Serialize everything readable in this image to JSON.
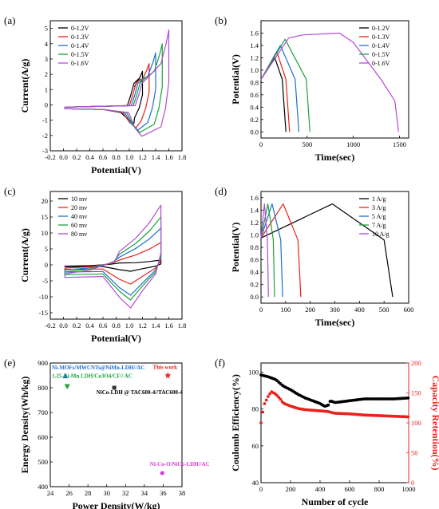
{
  "chart_data": [
    {
      "panel": "(a)",
      "type": "line",
      "xlabel": "Potential(V)",
      "ylabel": "Current(A/g)",
      "xlim": [
        -0.2,
        1.8
      ],
      "ylim": [
        -3,
        5.5
      ],
      "xticks": [
        -0.2,
        0.0,
        0.2,
        0.4,
        0.6,
        0.8,
        1.0,
        1.2,
        1.4,
        1.6,
        1.8
      ],
      "yticks": [
        -3,
        -2,
        -1,
        0,
        1,
        2,
        3,
        4,
        5
      ],
      "legend_position": "top-left",
      "series": [
        {
          "name": "0-1.2V",
          "color": "#000000",
          "end_potential": 1.2,
          "peak_current": 2.2,
          "valley_current": -1.2
        },
        {
          "name": "0-1.3V",
          "color": "#e8221b",
          "end_potential": 1.3,
          "peak_current": 2.7,
          "valley_current": -1.5
        },
        {
          "name": "0-1.4V",
          "color": "#1f6fd1",
          "end_potential": 1.4,
          "peak_current": 3.4,
          "valley_current": -1.65
        },
        {
          "name": "0-1.5V",
          "color": "#1aa33a",
          "end_potential": 1.5,
          "peak_current": 4.0,
          "valley_current": -1.8
        },
        {
          "name": "0-1.6V",
          "color": "#b54ad6",
          "end_potential": 1.6,
          "peak_current": 4.9,
          "valley_current": -2.05
        }
      ]
    },
    {
      "panel": "(b)",
      "type": "line",
      "xlabel": "Time(sec)",
      "ylabel": "Potential(V)",
      "xlim": [
        0,
        1600
      ],
      "ylim": [
        -0.1,
        1.8
      ],
      "xticks": [
        0,
        500,
        1000,
        1500
      ],
      "yticks": [
        0.0,
        0.2,
        0.4,
        0.6,
        0.8,
        1.0,
        1.2,
        1.4,
        1.6
      ],
      "legend_position": "top-right",
      "series": [
        {
          "name": "0-1.2V",
          "color": "#000000",
          "points": [
            [
              0,
              0.85
            ],
            [
              150,
              1.2
            ],
            [
              230,
              0.85
            ],
            [
              270,
              0
            ]
          ]
        },
        {
          "name": "0-1.3V",
          "color": "#e8221b",
          "points": [
            [
              0,
              0.85
            ],
            [
              170,
              1.3
            ],
            [
              270,
              0.85
            ],
            [
              310,
              0
            ]
          ]
        },
        {
          "name": "0-1.4V",
          "color": "#1f6fd1",
          "points": [
            [
              0,
              0.85
            ],
            [
              210,
              1.4
            ],
            [
              370,
              0.85
            ],
            [
              410,
              0
            ]
          ]
        },
        {
          "name": "0-1.5V",
          "color": "#1aa33a",
          "points": [
            [
              0,
              0.85
            ],
            [
              260,
              1.5
            ],
            [
              490,
              0.85
            ],
            [
              530,
              0
            ]
          ]
        },
        {
          "name": "0-1.6V",
          "color": "#b54ad6",
          "points": [
            [
              0,
              0.85
            ],
            [
              300,
              1.52
            ],
            [
              450,
              1.57
            ],
            [
              850,
              1.6
            ],
            [
              1000,
              1.45
            ],
            [
              1300,
              0.85
            ],
            [
              1450,
              0.5
            ],
            [
              1490,
              0
            ]
          ]
        }
      ]
    },
    {
      "panel": "(c)",
      "type": "line",
      "xlabel": "Potential(V)",
      "ylabel": "Current(A/g)",
      "xlim": [
        -0.2,
        1.8
      ],
      "ylim": [
        -17,
        23
      ],
      "xticks": [
        -0.2,
        0.0,
        0.2,
        0.4,
        0.6,
        0.8,
        1.0,
        1.2,
        1.4,
        1.6,
        1.8
      ],
      "yticks": [
        -15,
        -10,
        -5,
        0,
        5,
        10,
        15,
        20
      ],
      "legend_position": "top-left",
      "series": [
        {
          "name": "10 mv",
          "color": "#000000",
          "peak_current": 1.5,
          "valley_current": -2.0
        },
        {
          "name": "20 mv",
          "color": "#e8221b",
          "peak_current": 7.0,
          "valley_current": -6.0
        },
        {
          "name": "40 mv",
          "color": "#1f6fd1",
          "peak_current": 11.5,
          "valley_current": -9.5
        },
        {
          "name": "60 mv",
          "color": "#1aa33a",
          "peak_current": 15.0,
          "valley_current": -11.0
        },
        {
          "name": "80 mv",
          "color": "#b54ad6",
          "peak_current": 18.7,
          "valley_current": -13.5
        }
      ]
    },
    {
      "panel": "(d)",
      "type": "line",
      "xlabel": "Time(sec)",
      "ylabel": "Potential(V)",
      "xlim": [
        0,
        600
      ],
      "ylim": [
        -0.1,
        1.7
      ],
      "xticks": [
        0,
        100,
        200,
        300,
        400,
        500,
        600
      ],
      "yticks": [
        0.0,
        0.2,
        0.4,
        0.6,
        0.8,
        1.0,
        1.2,
        1.4,
        1.6
      ],
      "legend_position": "top-right",
      "series": [
        {
          "name": "1 A/g",
          "color": "#000000",
          "points": [
            [
              0,
              0.95
            ],
            [
              290,
              1.5
            ],
            [
              500,
              0.92
            ],
            [
              535,
              0
            ]
          ]
        },
        {
          "name": "3 A/g",
          "color": "#e8221b",
          "points": [
            [
              0,
              0.95
            ],
            [
              90,
              1.5
            ],
            [
              150,
              0.92
            ],
            [
              162,
              0
            ]
          ]
        },
        {
          "name": "5 A/g",
          "color": "#1f6fd1",
          "points": [
            [
              0,
              0.95
            ],
            [
              45,
              1.5
            ],
            [
              80,
              0.92
            ],
            [
              88,
              0
            ]
          ]
        },
        {
          "name": "7 A/g",
          "color": "#1aa33a",
          "points": [
            [
              0,
              0.95
            ],
            [
              28,
              1.5
            ],
            [
              50,
              0.92
            ],
            [
              55,
              0
            ]
          ]
        },
        {
          "name": "10 A/g",
          "color": "#b54ad6",
          "points": [
            [
              0,
              0.95
            ],
            [
              14,
              1.5
            ],
            [
              26,
              0.92
            ],
            [
              30,
              0
            ]
          ]
        }
      ]
    },
    {
      "panel": "(e)",
      "type": "scatter",
      "xlabel": "Power Density(W/kg)",
      "ylabel": "Energy Density(Wh/kg)",
      "xlim": [
        24,
        38
      ],
      "ylim": [
        400,
        900
      ],
      "xticks": [
        24,
        26,
        28,
        30,
        32,
        34,
        36,
        38
      ],
      "yticks": [
        400,
        500,
        600,
        700,
        800,
        900
      ],
      "points": [
        {
          "label": "Ni-MOFs/MWCNTs@NiMn-LDH//AC",
          "x": 25.6,
          "y": 848,
          "marker": "triangle-up",
          "color": "#1f6fd1"
        },
        {
          "label": "1.25-Ni-Mn LDH/Co3O4/CF// AC",
          "x": 25.8,
          "y": 805,
          "marker": "triangle-down",
          "color": "#1aa33a"
        },
        {
          "label": "NiCo-LDH @ TAC600-4//TAC600-4",
          "x": 30.8,
          "y": 800,
          "marker": "square",
          "color": "#333333"
        },
        {
          "label": "Ni-Co-O/NiCo-LDH//AC",
          "x": 35.9,
          "y": 455,
          "marker": "circle",
          "color": "#d63ad6"
        },
        {
          "label": "This work",
          "x": 36.5,
          "y": 850,
          "marker": "star",
          "color": "#e8221b"
        }
      ]
    },
    {
      "panel": "(f)",
      "type": "scatter",
      "xlabel": "Number of cycle",
      "ylabel": "Coulomb Efficiency(%)",
      "y2label": "Capacity Retention(%)",
      "xlim": [
        0,
        1000
      ],
      "ylim": [
        40,
        105
      ],
      "y2lim": [
        0,
        200
      ],
      "xticks": [
        0,
        200,
        400,
        600,
        800,
        1000
      ],
      "yticks": [
        40,
        60,
        80,
        100
      ],
      "y2ticks": [
        0,
        50,
        100,
        150,
        200
      ],
      "series": [
        {
          "name": "Coulomb Efficiency",
          "axis": "left",
          "color": "#000000",
          "marker": "circle",
          "anchors": [
            [
              0,
              98.5
            ],
            [
              50,
              97.5
            ],
            [
              100,
              96
            ],
            [
              150,
              92.5
            ],
            [
              200,
              90.5
            ],
            [
              250,
              88
            ],
            [
              300,
              86
            ],
            [
              350,
              84.5
            ],
            [
              400,
              83
            ],
            [
              430,
              81.5
            ],
            [
              455,
              82
            ],
            [
              470,
              84.5
            ],
            [
              500,
              83.5
            ],
            [
              600,
              84.5
            ],
            [
              700,
              85.5
            ],
            [
              800,
              85.5
            ],
            [
              900,
              85.5
            ],
            [
              1000,
              86
            ]
          ]
        },
        {
          "name": "Capacity Retention",
          "axis": "right",
          "color": "#e8221b",
          "marker": "circle",
          "anchors": [
            [
              0,
              100
            ],
            [
              20,
              130
            ],
            [
              50,
              145
            ],
            [
              70,
              152
            ],
            [
              100,
              148
            ],
            [
              130,
              140
            ],
            [
              150,
              133
            ],
            [
              200,
              128
            ],
            [
              250,
              124
            ],
            [
              300,
              122
            ],
            [
              350,
              121
            ],
            [
              400,
              120
            ],
            [
              450,
              119
            ],
            [
              500,
              116
            ],
            [
              600,
              115
            ],
            [
              700,
              113
            ],
            [
              800,
              112
            ],
            [
              900,
              111
            ],
            [
              1000,
              110
            ]
          ]
        }
      ]
    }
  ]
}
